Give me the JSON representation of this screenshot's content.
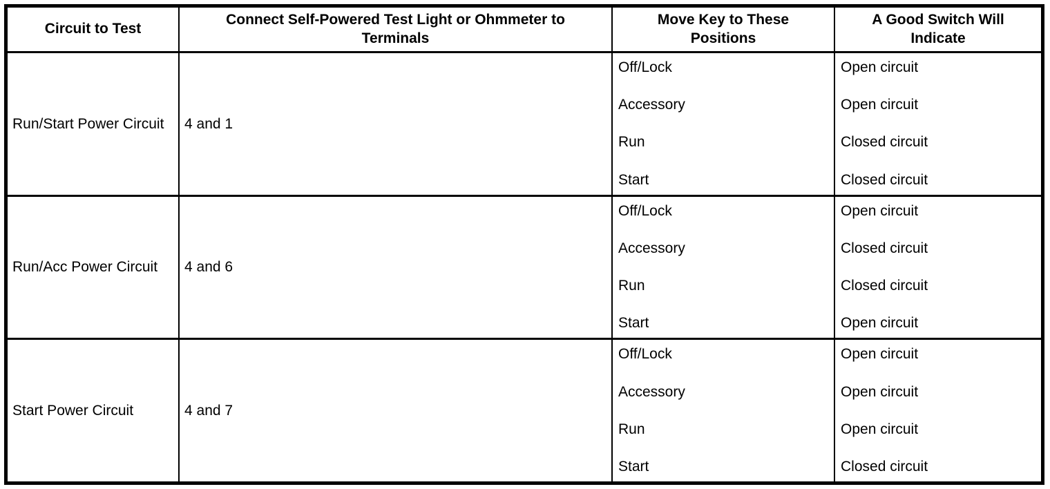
{
  "table": {
    "headers": {
      "circuit": "Circuit to Test",
      "terminals": "Connect Self-Powered Test Light or Ohmmeter to Terminals",
      "positions": "Move Key to These Positions",
      "indication": "A Good Switch Will Indicate"
    },
    "rows": [
      {
        "circuit": "Run/Start Power Circuit",
        "terminals": "4 and 1",
        "positions": [
          "Off/Lock",
          "Accessory",
          "Run",
          "Start"
        ],
        "indications": [
          "Open circuit",
          "Open circuit",
          "Closed circuit",
          "Closed circuit"
        ]
      },
      {
        "circuit": "Run/Acc Power Circuit",
        "terminals": "4 and 6",
        "positions": [
          "Off/Lock",
          "Accessory",
          "Run",
          "Start"
        ],
        "indications": [
          "Open circuit",
          "Closed circuit",
          "Closed circuit",
          "Open circuit"
        ]
      },
      {
        "circuit": "Start Power Circuit",
        "terminals": "4 and 7",
        "positions": [
          "Off/Lock",
          "Accessory",
          "Run",
          "Start"
        ],
        "indications": [
          "Open circuit",
          "Open circuit",
          "Open circuit",
          "Closed circuit"
        ]
      }
    ],
    "colors": {
      "border": "#000000",
      "background": "#ffffff",
      "text": "#000000"
    }
  }
}
